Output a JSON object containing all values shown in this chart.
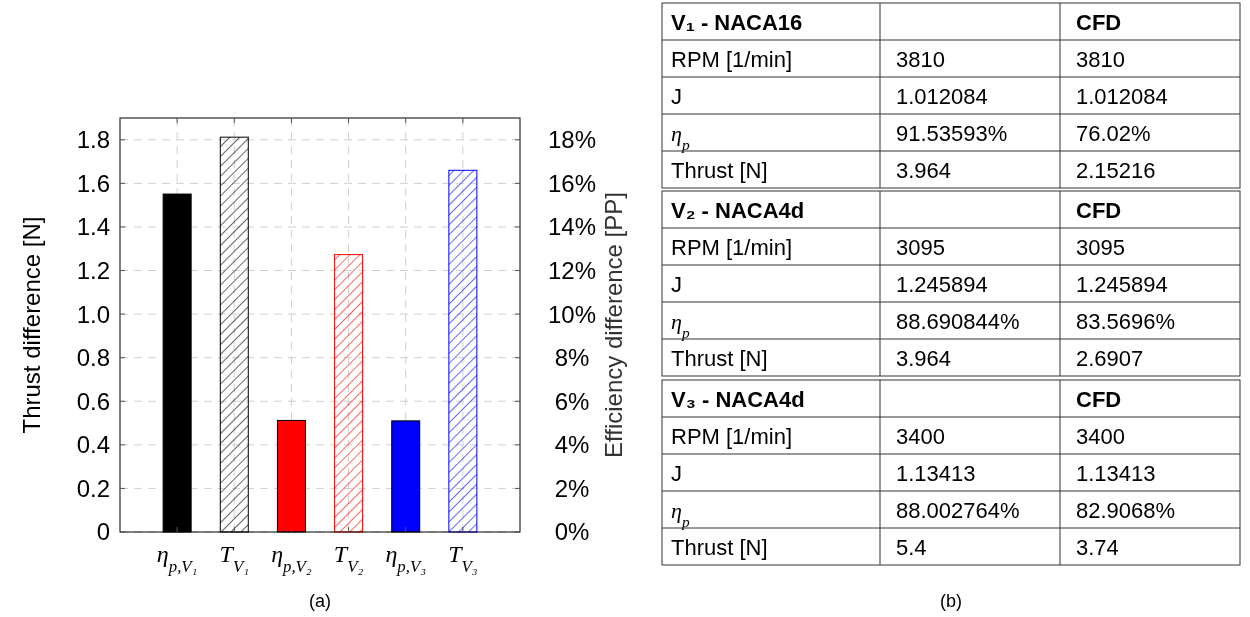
{
  "chart_data": [
    {
      "type": "bar",
      "ylabel": "Thrust difference [N]",
      "y2label": "Efficiency difference [PP]",
      "categories": [
        "η$_{p,V₁}$",
        "T$_{V₁}$",
        "η$_{p,V₂}$",
        "T$_{V₂}$",
        "η$_{p,V₃}$",
        "T$_{V₃}$"
      ],
      "series": [
        {
          "axis": "y2",
          "colors": [
            "#000000",
            null,
            "#ff0000",
            null,
            "#0000ff",
            null
          ],
          "values": [
            15.51,
            null,
            5.12,
            null,
            5.1,
            null
          ]
        },
        {
          "axis": "y",
          "colors": [
            null,
            "#000000",
            null,
            "#ff0000",
            null,
            "#0000ff"
          ],
          "values": [
            null,
            1.812,
            null,
            1.273,
            null,
            1.66
          ]
        }
      ],
      "ylim": [
        0,
        1.9
      ],
      "yticks": [
        0,
        0.2,
        0.4,
        0.6,
        0.8,
        {
          "value": 1.0,
          "label": "1.0"
        },
        1.2,
        1.4,
        1.6,
        1.8
      ],
      "y2lim": [
        0,
        19
      ],
      "y2ticks": [
        {
          "value": 0,
          "label": "0%"
        },
        {
          "value": 2,
          "label": "2%"
        },
        {
          "value": 4,
          "label": "4%"
        },
        {
          "value": 6,
          "label": "6%"
        },
        {
          "value": 8,
          "label": "8%"
        },
        {
          "value": 10,
          "label": "10%"
        },
        {
          "value": 12,
          "label": "12%"
        },
        {
          "value": 14,
          "label": "14%"
        },
        {
          "value": 16,
          "label": "16%"
        },
        {
          "value": 18,
          "label": "18%"
        }
      ],
      "grid": true,
      "line_style": "dashed",
      "annotations": [
        "(a)"
      ]
    },
    {
      "type": "other",
      "annotations": [
        "V₁ - NACA16",
        "CFD",
        "RPM [1/min]",
        "3810",
        "3810",
        "J",
        "1.012084",
        "1.012084",
        "η$_{p}$",
        "91.53593%",
        "76.02%",
        "Thrust [N]",
        "3.964",
        "2.15216",
        "V₂ - NACA4d",
        "CFD",
        "RPM [1/min]",
        "3095",
        "3095",
        "J",
        "1.245894",
        "1.245894",
        "η$_{p}$",
        "88.690844%",
        "83.5696%",
        "Thrust [N]",
        "3.964",
        "2.6907",
        "V₃ - NACA4d",
        "CFD",
        "RPM [1/min]",
        "3400",
        "3400",
        "J",
        "1.13413",
        "1.13413",
        "η$_{p}$",
        "88.002764%",
        "82.9068%",
        "Thrust [N]",
        "5.4",
        "3.74",
        "(b)"
      ]
    }
  ]
}
